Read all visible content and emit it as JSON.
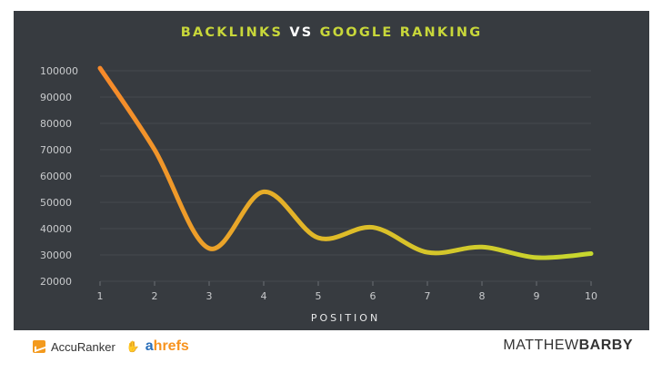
{
  "title": {
    "part1": "BACKLINKS",
    "part2": "VS",
    "part3": "GOOGLE RANKING"
  },
  "colors": {
    "background": "#373b40",
    "title_accent": "#c8d73a",
    "line_start": "#f7892a",
    "line_end": "#c6d82e",
    "axis_text": "#c9cbcd"
  },
  "chart_data": {
    "type": "line",
    "title": "BACKLINKS VS GOOGLE RANKING",
    "xlabel": "POSITION",
    "ylabel": "",
    "x": [
      1,
      2,
      3,
      4,
      5,
      6,
      7,
      8,
      9,
      10
    ],
    "y_ticks": [
      20000,
      30000,
      40000,
      50000,
      60000,
      70000,
      80000,
      90000,
      100000
    ],
    "ylim": [
      20000,
      100000
    ],
    "xlim": [
      1,
      10
    ],
    "grid": true,
    "legend": "none",
    "series": [
      {
        "values": [
          101000,
          70000,
          32500,
          54000,
          36500,
          40500,
          31000,
          33000,
          29000,
          30500
        ]
      }
    ]
  },
  "footer": {
    "accuranker": "AccuRanker",
    "ahrefs_a": "a",
    "ahrefs_rest": "hrefs",
    "author_light": "MATTHEW",
    "author_bold": "BARBY"
  },
  "icons": [
    "accuranker-logo-icon",
    "ahrefs-hand-icon"
  ]
}
